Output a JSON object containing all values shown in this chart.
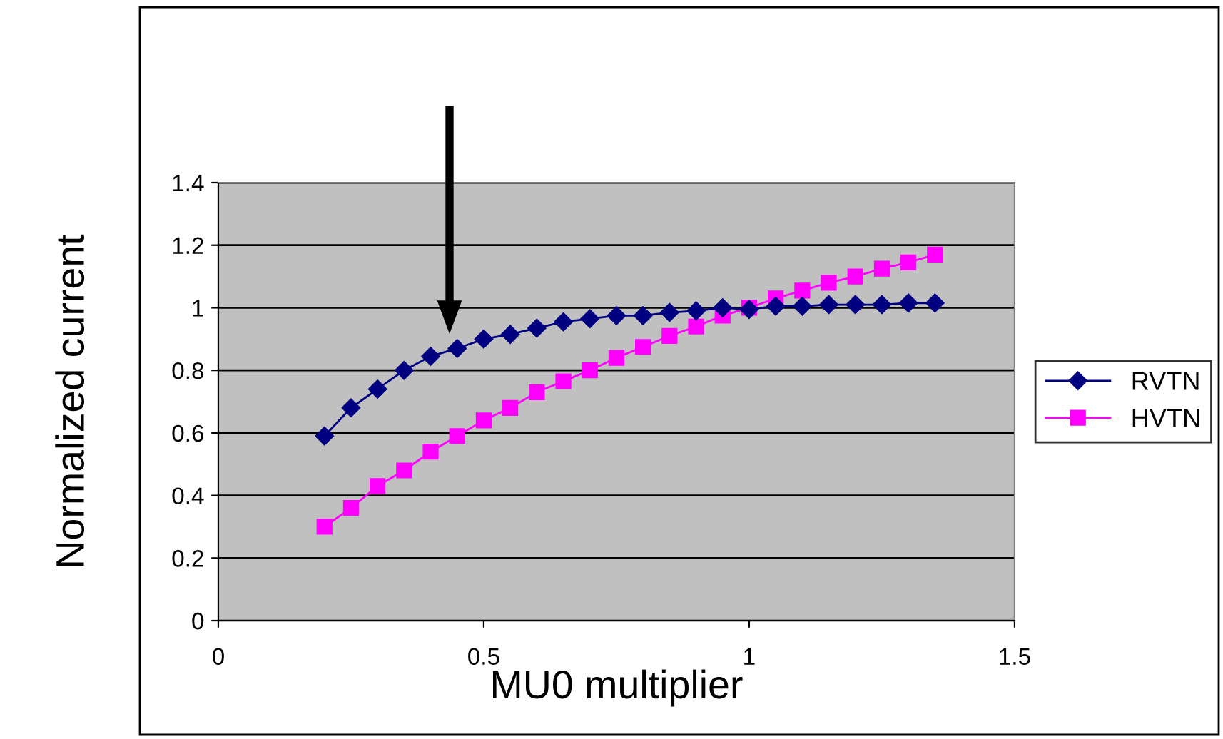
{
  "chart_data": {
    "type": "line",
    "xlabel": "MU0 multiplier",
    "ylabel": "Normalized current",
    "x": [
      0.2,
      0.25,
      0.3,
      0.35,
      0.4,
      0.45,
      0.5,
      0.55,
      0.6,
      0.65,
      0.7,
      0.75,
      0.8,
      0.85,
      0.9,
      0.95,
      1.0,
      1.05,
      1.1,
      1.15,
      1.2,
      1.25,
      1.3,
      1.35
    ],
    "series": [
      {
        "name": "RVTN",
        "color": "#000080",
        "marker": "diamond",
        "values": [
          0.59,
          0.68,
          0.74,
          0.8,
          0.845,
          0.87,
          0.9,
          0.915,
          0.935,
          0.955,
          0.965,
          0.975,
          0.975,
          0.985,
          0.99,
          1.0,
          0.995,
          1.005,
          1.005,
          1.01,
          1.01,
          1.01,
          1.015,
          1.015
        ]
      },
      {
        "name": "HVTN",
        "color": "#ff00ff",
        "marker": "square",
        "values": [
          0.3,
          0.36,
          0.43,
          0.48,
          0.54,
          0.59,
          0.64,
          0.68,
          0.73,
          0.765,
          0.8,
          0.84,
          0.875,
          0.91,
          0.94,
          0.975,
          1.0,
          1.03,
          1.055,
          1.08,
          1.1,
          1.125,
          1.145,
          1.17
        ]
      }
    ],
    "xlim": [
      0,
      1.5
    ],
    "xticks": [
      0,
      0.5,
      1,
      1.5
    ],
    "ylim": [
      0,
      1.4
    ],
    "yticks": [
      0,
      0.2,
      0.4,
      0.6,
      0.8,
      1,
      1.2,
      1.4
    ],
    "grid": "y",
    "legend": "right"
  }
}
